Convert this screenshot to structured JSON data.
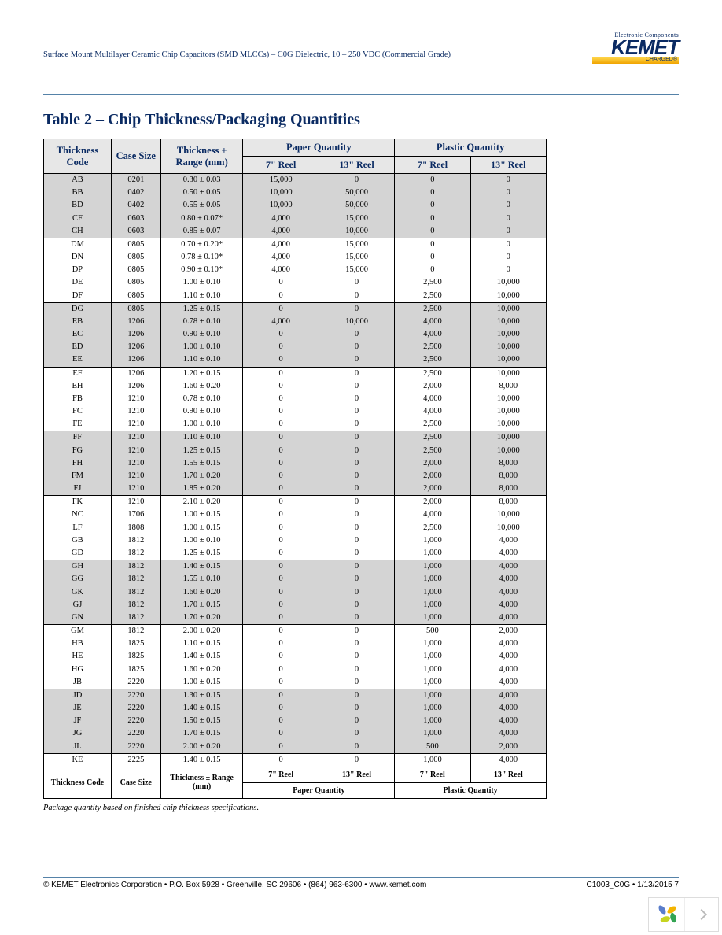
{
  "header": {
    "doc_title": "Surface Mount Multilayer Ceramic Chip Capacitors (SMD MLCCs) – C0G Dielectric, 10 – 250 VDC (Commercial Grade)",
    "logo_tagline": "Electronic Components",
    "logo_name": "KEMET",
    "logo_sub": "CHARGED®"
  },
  "section_title": "Table 2 – Chip Thickness/Packaging Quantities",
  "table": {
    "head": {
      "thickness_code": "Thickness Code",
      "case_size": "Case Size",
      "thickness_range": "Thickness ± Range (mm)",
      "paper_qty": "Paper Quantity",
      "plastic_qty": "Plastic Quantity",
      "reel7": "7\" Reel",
      "reel13": "13\" Reel"
    },
    "groups": [
      {
        "band": true,
        "rows": [
          [
            "AB",
            "0201",
            "0.30 ± 0.03",
            "15,000",
            "0",
            "0",
            "0"
          ],
          [
            "BB",
            "0402",
            "0.50 ± 0.05",
            "10,000",
            "50,000",
            "0",
            "0"
          ],
          [
            "BD",
            "0402",
            "0.55 ± 0.05",
            "10,000",
            "50,000",
            "0",
            "0"
          ],
          [
            "CF",
            "0603",
            "0.80 ± 0.07*",
            "4,000",
            "15,000",
            "0",
            "0"
          ],
          [
            "CH",
            "0603",
            "0.85 ± 0.07",
            "4,000",
            "10,000",
            "0",
            "0"
          ]
        ]
      },
      {
        "band": false,
        "rows": [
          [
            "DM",
            "0805",
            "0.70 ± 0.20*",
            "4,000",
            "15,000",
            "0",
            "0"
          ],
          [
            "DN",
            "0805",
            "0.78 ± 0.10*",
            "4,000",
            "15,000",
            "0",
            "0"
          ],
          [
            "DP",
            "0805",
            "0.90 ± 0.10*",
            "4,000",
            "15,000",
            "0",
            "0"
          ],
          [
            "DE",
            "0805",
            "1.00 ± 0.10",
            "0",
            "0",
            "2,500",
            "10,000"
          ],
          [
            "DF",
            "0805",
            "1.10 ± 0.10",
            "0",
            "0",
            "2,500",
            "10,000"
          ]
        ]
      },
      {
        "band": true,
        "rows": [
          [
            "DG",
            "0805",
            "1.25 ± 0.15",
            "0",
            "0",
            "2,500",
            "10,000"
          ],
          [
            "EB",
            "1206",
            "0.78 ± 0.10",
            "4,000",
            "10,000",
            "4,000",
            "10,000"
          ],
          [
            "EC",
            "1206",
            "0.90 ± 0.10",
            "0",
            "0",
            "4,000",
            "10,000"
          ],
          [
            "ED",
            "1206",
            "1.00 ± 0.10",
            "0",
            "0",
            "2,500",
            "10,000"
          ],
          [
            "EE",
            "1206",
            "1.10 ± 0.10",
            "0",
            "0",
            "2,500",
            "10,000"
          ]
        ]
      },
      {
        "band": false,
        "rows": [
          [
            "EF",
            "1206",
            "1.20 ± 0.15",
            "0",
            "0",
            "2,500",
            "10,000"
          ],
          [
            "EH",
            "1206",
            "1.60 ± 0.20",
            "0",
            "0",
            "2,000",
            "8,000"
          ],
          [
            "FB",
            "1210",
            "0.78 ± 0.10",
            "0",
            "0",
            "4,000",
            "10,000"
          ],
          [
            "FC",
            "1210",
            "0.90 ± 0.10",
            "0",
            "0",
            "4,000",
            "10,000"
          ],
          [
            "FE",
            "1210",
            "1.00 ± 0.10",
            "0",
            "0",
            "2,500",
            "10,000"
          ]
        ]
      },
      {
        "band": true,
        "rows": [
          [
            "FF",
            "1210",
            "1.10 ± 0.10",
            "0",
            "0",
            "2,500",
            "10,000"
          ],
          [
            "FG",
            "1210",
            "1.25 ± 0.15",
            "0",
            "0",
            "2,500",
            "10,000"
          ],
          [
            "FH",
            "1210",
            "1.55 ± 0.15",
            "0",
            "0",
            "2,000",
            "8,000"
          ],
          [
            "FM",
            "1210",
            "1.70 ± 0.20",
            "0",
            "0",
            "2,000",
            "8,000"
          ],
          [
            "FJ",
            "1210",
            "1.85 ± 0.20",
            "0",
            "0",
            "2,000",
            "8,000"
          ]
        ]
      },
      {
        "band": false,
        "rows": [
          [
            "FK",
            "1210",
            "2.10 ± 0.20",
            "0",
            "0",
            "2,000",
            "8,000"
          ],
          [
            "NC",
            "1706",
            "1.00 ± 0.15",
            "0",
            "0",
            "4,000",
            "10,000"
          ],
          [
            "LF",
            "1808",
            "1.00 ± 0.15",
            "0",
            "0",
            "2,500",
            "10,000"
          ],
          [
            "GB",
            "1812",
            "1.00 ± 0.10",
            "0",
            "0",
            "1,000",
            "4,000"
          ],
          [
            "GD",
            "1812",
            "1.25 ± 0.15",
            "0",
            "0",
            "1,000",
            "4,000"
          ]
        ]
      },
      {
        "band": true,
        "rows": [
          [
            "GH",
            "1812",
            "1.40 ± 0.15",
            "0",
            "0",
            "1,000",
            "4,000"
          ],
          [
            "GG",
            "1812",
            "1.55 ± 0.10",
            "0",
            "0",
            "1,000",
            "4,000"
          ],
          [
            "GK",
            "1812",
            "1.60 ± 0.20",
            "0",
            "0",
            "1,000",
            "4,000"
          ],
          [
            "GJ",
            "1812",
            "1.70 ± 0.15",
            "0",
            "0",
            "1,000",
            "4,000"
          ],
          [
            "GN",
            "1812",
            "1.70 ± 0.20",
            "0",
            "0",
            "1,000",
            "4,000"
          ]
        ]
      },
      {
        "band": false,
        "rows": [
          [
            "GM",
            "1812",
            "2.00 ± 0.20",
            "0",
            "0",
            "500",
            "2,000"
          ],
          [
            "HB",
            "1825",
            "1.10 ± 0.15",
            "0",
            "0",
            "1,000",
            "4,000"
          ],
          [
            "HE",
            "1825",
            "1.40 ± 0.15",
            "0",
            "0",
            "1,000",
            "4,000"
          ],
          [
            "HG",
            "1825",
            "1.60 ± 0.20",
            "0",
            "0",
            "1,000",
            "4,000"
          ],
          [
            "JB",
            "2220",
            "1.00 ± 0.15",
            "0",
            "0",
            "1,000",
            "4,000"
          ]
        ]
      },
      {
        "band": true,
        "rows": [
          [
            "JD",
            "2220",
            "1.30 ± 0.15",
            "0",
            "0",
            "1,000",
            "4,000"
          ],
          [
            "JE",
            "2220",
            "1.40 ± 0.15",
            "0",
            "0",
            "1,000",
            "4,000"
          ],
          [
            "JF",
            "2220",
            "1.50 ± 0.15",
            "0",
            "0",
            "1,000",
            "4,000"
          ],
          [
            "JG",
            "2220",
            "1.70 ± 0.15",
            "0",
            "0",
            "1,000",
            "4,000"
          ],
          [
            "JL",
            "2220",
            "2.00 ± 0.20",
            "0",
            "0",
            "500",
            "2,000"
          ]
        ]
      },
      {
        "band": false,
        "rows": [
          [
            "KE",
            "2225",
            "1.40 ± 0.15",
            "0",
            "0",
            "1,000",
            "4,000"
          ]
        ]
      }
    ]
  },
  "footnote": "Package quantity based on finished chip thickness specifications.",
  "footer": {
    "left": "© KEMET Electronics Corporation • P.O. Box 5928 • Greenville, SC 29606 • (864) 963-6300 • www.kemet.com",
    "right": "C1003_C0G • 1/13/2015        7"
  },
  "colors": {
    "heading": "#0b2b63",
    "rule": "#5582a8",
    "band": "#d4d4d4",
    "head_bg": "#e7e7e7",
    "leaf1": "#f4b400",
    "leaf2": "#c6d420",
    "leaf3": "#33a453",
    "leaf4": "#5a7dcb"
  }
}
